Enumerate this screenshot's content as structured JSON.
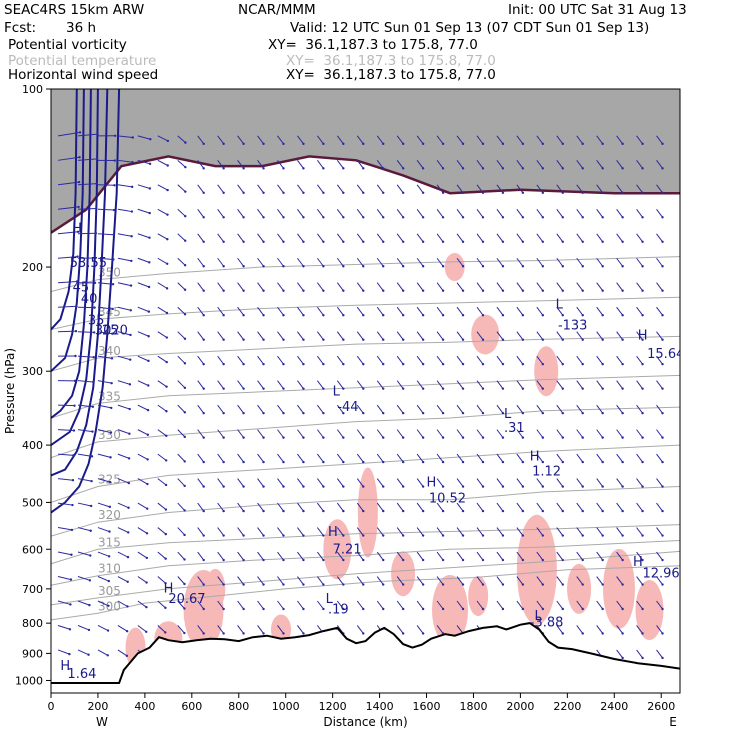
{
  "header": {
    "model": "SEAC4RS 15km ARW",
    "center": "NCAR/MMM",
    "init": "Init: 00 UTC Sat 31 Aug 13",
    "fcst_label": "Fcst:",
    "fcst_value": "36 h",
    "valid": "Valid: 12 UTC Sun 01 Sep 13 (07 CDT Sun 01 Sep 13)",
    "fields": [
      {
        "name": "Potential vorticity",
        "xy": "XY=  36.1,187.3 to 175.8, 77.0",
        "color": "#000000"
      },
      {
        "name": "Potential temperature",
        "xy": "XY=  36.1,187.3 to 175.8, 77.0",
        "color": "#bbbbbb"
      },
      {
        "name": "Horizontal wind speed",
        "xy": "XY=  36.1,187.3 to 175.8, 77.0",
        "color": "#000000"
      }
    ]
  },
  "chart_data": {
    "type": "cross-section",
    "xlabel": "Distance (km)",
    "ylabel": "Pressure (hPa)",
    "x_ticks": [
      0,
      200,
      400,
      600,
      800,
      1000,
      1200,
      1400,
      1600,
      1800,
      2000,
      2200,
      2400,
      2600
    ],
    "y_ticks": [
      100,
      200,
      300,
      400,
      500,
      600,
      700,
      800,
      900,
      1000
    ],
    "xlim": [
      0,
      2680
    ],
    "ylim": [
      100,
      1050
    ],
    "y_scale": "log",
    "end_labels": {
      "left": "W",
      "right": "E"
    },
    "colors": {
      "wind": "#1a1a8a",
      "pv": "#5a1a3a",
      "theta": "#aaaaaa",
      "rh": "#f7b8b8",
      "pv_high": "#555555"
    },
    "terrain": [
      [
        0,
        1010
      ],
      [
        150,
        1010
      ],
      [
        290,
        1010
      ],
      [
        310,
        960
      ],
      [
        370,
        900
      ],
      [
        420,
        880
      ],
      [
        460,
        845
      ],
      [
        500,
        855
      ],
      [
        560,
        862
      ],
      [
        620,
        855
      ],
      [
        680,
        850
      ],
      [
        740,
        852
      ],
      [
        800,
        858
      ],
      [
        860,
        845
      ],
      [
        920,
        840
      ],
      [
        980,
        850
      ],
      [
        1040,
        845
      ],
      [
        1100,
        838
      ],
      [
        1160,
        825
      ],
      [
        1220,
        815
      ],
      [
        1260,
        850
      ],
      [
        1300,
        865
      ],
      [
        1340,
        858
      ],
      [
        1380,
        830
      ],
      [
        1420,
        815
      ],
      [
        1460,
        835
      ],
      [
        1500,
        868
      ],
      [
        1540,
        880
      ],
      [
        1580,
        870
      ],
      [
        1620,
        850
      ],
      [
        1680,
        835
      ],
      [
        1720,
        840
      ],
      [
        1780,
        825
      ],
      [
        1840,
        815
      ],
      [
        1900,
        810
      ],
      [
        1940,
        820
      ],
      [
        2000,
        805
      ],
      [
        2040,
        800
      ],
      [
        2080,
        820
      ],
      [
        2120,
        860
      ],
      [
        2160,
        880
      ],
      [
        2220,
        885
      ],
      [
        2300,
        900
      ],
      [
        2400,
        920
      ],
      [
        2500,
        935
      ],
      [
        2600,
        945
      ],
      [
        2680,
        955
      ]
    ],
    "theta_contours": [
      {
        "label": "300",
        "points": [
          [
            0,
            790
          ],
          [
            200,
            770
          ],
          [
            400,
            740
          ],
          [
            700,
            720
          ],
          [
            1000,
            700
          ],
          [
            1400,
            680
          ],
          [
            1800,
            670
          ],
          [
            2200,
            650
          ],
          [
            2680,
            640
          ]
        ]
      },
      {
        "label": "305",
        "points": [
          [
            0,
            745
          ],
          [
            200,
            725
          ],
          [
            500,
            700
          ],
          [
            900,
            680
          ],
          [
            1300,
            660
          ],
          [
            1700,
            645
          ],
          [
            2100,
            630
          ],
          [
            2680,
            605
          ]
        ]
      },
      {
        "label": "310",
        "points": [
          [
            0,
            690
          ],
          [
            200,
            665
          ],
          [
            500,
            640
          ],
          [
            900,
            625
          ],
          [
            1300,
            615
          ],
          [
            1700,
            600
          ],
          [
            2100,
            595
          ],
          [
            2680,
            580
          ]
        ]
      },
      {
        "label": "315",
        "points": [
          [
            0,
            635
          ],
          [
            200,
            600
          ],
          [
            500,
            585
          ],
          [
            900,
            575
          ],
          [
            1300,
            565
          ],
          [
            1700,
            560
          ],
          [
            2100,
            555
          ],
          [
            2680,
            545
          ]
        ]
      },
      {
        "label": "320",
        "points": [
          [
            0,
            570
          ],
          [
            200,
            540
          ],
          [
            500,
            520
          ],
          [
            900,
            505
          ],
          [
            1300,
            495
          ],
          [
            1700,
            495
          ],
          [
            2100,
            480
          ],
          [
            2680,
            470
          ]
        ]
      },
      {
        "label": "325",
        "points": [
          [
            0,
            500
          ],
          [
            200,
            470
          ],
          [
            500,
            450
          ],
          [
            900,
            440
          ],
          [
            1300,
            430
          ],
          [
            1700,
            420
          ],
          [
            2100,
            410
          ],
          [
            2680,
            400
          ]
        ]
      },
      {
        "label": "330",
        "points": [
          [
            0,
            420
          ],
          [
            200,
            395
          ],
          [
            500,
            385
          ],
          [
            900,
            375
          ],
          [
            1300,
            365
          ],
          [
            1700,
            360
          ],
          [
            2100,
            350
          ],
          [
            2680,
            345
          ]
        ]
      },
      {
        "label": "335",
        "points": [
          [
            0,
            360
          ],
          [
            200,
            340
          ],
          [
            500,
            330
          ],
          [
            900,
            325
          ],
          [
            1300,
            320
          ],
          [
            1700,
            315
          ],
          [
            2100,
            310
          ],
          [
            2680,
            305
          ]
        ]
      },
      {
        "label": "340",
        "points": [
          [
            0,
            300
          ],
          [
            200,
            285
          ],
          [
            500,
            280
          ],
          [
            900,
            275
          ],
          [
            1300,
            270
          ],
          [
            1700,
            268
          ],
          [
            2100,
            265
          ],
          [
            2680,
            262
          ]
        ]
      },
      {
        "label": "345",
        "points": [
          [
            0,
            255
          ],
          [
            200,
            245
          ],
          [
            500,
            240
          ],
          [
            900,
            235
          ],
          [
            1300,
            232
          ],
          [
            1700,
            230
          ],
          [
            2100,
            228
          ],
          [
            2680,
            225
          ]
        ]
      },
      {
        "label": "350",
        "points": [
          [
            0,
            220
          ],
          [
            200,
            210
          ],
          [
            500,
            205
          ],
          [
            900,
            200
          ],
          [
            1300,
            198
          ],
          [
            1700,
            196
          ],
          [
            2100,
            195
          ],
          [
            2680,
            192
          ]
        ]
      }
    ],
    "wind_contours": [
      {
        "label": "20",
        "points": [
          [
            290,
            100
          ],
          [
            280,
            150
          ],
          [
            260,
            200
          ],
          [
            240,
            260
          ],
          [
            220,
            320
          ],
          [
            190,
            380
          ],
          [
            160,
            430
          ],
          [
            120,
            470
          ],
          [
            60,
            500
          ],
          [
            0,
            520
          ]
        ]
      },
      {
        "label": "25",
        "points": [
          [
            240,
            100
          ],
          [
            230,
            150
          ],
          [
            215,
            200
          ],
          [
            200,
            260
          ],
          [
            180,
            320
          ],
          [
            150,
            370
          ],
          [
            110,
            410
          ],
          [
            60,
            440
          ],
          [
            0,
            450
          ]
        ]
      },
      {
        "label": "30",
        "points": [
          [
            200,
            100
          ],
          [
            195,
            150
          ],
          [
            185,
            200
          ],
          [
            170,
            260
          ],
          [
            150,
            310
          ],
          [
            120,
            350
          ],
          [
            80,
            380
          ],
          [
            0,
            400
          ]
        ]
      },
      {
        "label": "35",
        "points": [
          [
            170,
            100
          ],
          [
            165,
            150
          ],
          [
            155,
            200
          ],
          [
            140,
            250
          ],
          [
            120,
            300
          ],
          [
            90,
            330
          ],
          [
            40,
            350
          ],
          [
            0,
            360
          ]
        ]
      },
      {
        "label": "40",
        "points": [
          [
            140,
            100
          ],
          [
            135,
            150
          ],
          [
            125,
            190
          ],
          [
            110,
            230
          ],
          [
            90,
            260
          ],
          [
            60,
            285
          ],
          [
            0,
            300
          ]
        ]
      },
      {
        "label": "45",
        "points": [
          [
            110,
            100
          ],
          [
            105,
            150
          ],
          [
            95,
            190
          ],
          [
            75,
            220
          ],
          [
            40,
            245
          ],
          [
            0,
            255
          ]
        ]
      }
    ],
    "labels": [
      {
        "text": "H",
        "x": 90,
        "y": 175,
        "color": "#1a1a8a"
      },
      {
        "text": "53.55",
        "x": 80,
        "y": 200,
        "color": "#1a1a8a"
      },
      {
        "text": "L",
        "x": 2150,
        "y": 235,
        "color": "#1a1a8a"
      },
      {
        "text": "-133",
        "x": 2160,
        "y": 255,
        "color": "#1a1a8a"
      },
      {
        "text": "H",
        "x": 2500,
        "y": 265,
        "color": "#1a1a8a"
      },
      {
        "text": "15.64",
        "x": 2540,
        "y": 285,
        "color": "#1a1a8a"
      },
      {
        "text": "L",
        "x": 1200,
        "y": 330,
        "color": "#1a1a8a"
      },
      {
        "text": "-44",
        "x": 1220,
        "y": 350,
        "color": "#1a1a8a"
      },
      {
        "text": "L",
        "x": 1930,
        "y": 360,
        "color": "#1a1a8a"
      },
      {
        "text": ".31",
        "x": 1930,
        "y": 380,
        "color": "#1a1a8a"
      },
      {
        "text": "H",
        "x": 2040,
        "y": 425,
        "color": "#1a1a8a"
      },
      {
        "text": "1.12",
        "x": 2050,
        "y": 450,
        "color": "#1a1a8a"
      },
      {
        "text": "H",
        "x": 1600,
        "y": 470,
        "color": "#1a1a8a"
      },
      {
        "text": "10.52",
        "x": 1610,
        "y": 500,
        "color": "#1a1a8a"
      },
      {
        "text": "H",
        "x": 1180,
        "y": 570,
        "color": "#1a1a8a"
      },
      {
        "text": "7.21",
        "x": 1200,
        "y": 610,
        "color": "#1a1a8a"
      },
      {
        "text": "H",
        "x": 480,
        "y": 710,
        "color": "#1a1a8a"
      },
      {
        "text": "20.67",
        "x": 500,
        "y": 740,
        "color": "#1a1a8a"
      },
      {
        "text": "H",
        "x": 2480,
        "y": 640,
        "color": "#1a1a8a"
      },
      {
        "text": "12.96",
        "x": 2520,
        "y": 670,
        "color": "#1a1a8a"
      },
      {
        "text": "L",
        "x": 1170,
        "y": 740,
        "color": "#1a1a8a"
      },
      {
        "text": ".19",
        "x": 1180,
        "y": 770,
        "color": "#1a1a8a"
      },
      {
        "text": "L",
        "x": 2060,
        "y": 790,
        "color": "#1a1a8a"
      },
      {
        "text": "-3.88",
        "x": 2040,
        "y": 810,
        "color": "#1a1a8a"
      },
      {
        "text": "H",
        "x": 40,
        "y": 960,
        "color": "#1a1a8a"
      },
      {
        "text": "1.64",
        "x": 70,
        "y": 990,
        "color": "#1a1a8a"
      }
    ]
  }
}
